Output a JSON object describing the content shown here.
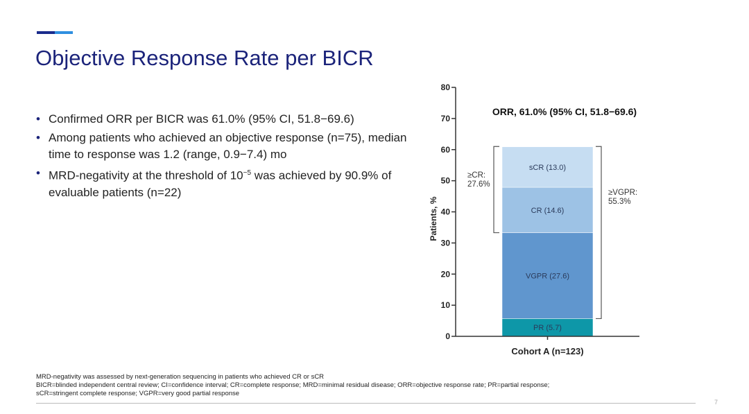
{
  "title": "Objective Response Rate per BICR",
  "bullets": [
    {
      "text": "Confirmed ORR per BICR was 61.0% (95% CI, 51.8−69.6)"
    },
    {
      "text": "Among patients who achieved an objective response (n=75), median time to response was 1.2 (range, 0.9−7.4) mo"
    },
    {
      "pre": "MRD-negativity at the threshold of 10",
      "sup": "−5",
      "post": " was achieved by 90.9% of evaluable patients (n=22)"
    }
  ],
  "footnotes": [
    "MRD-negativity was assessed by next-generation sequencing in patients who achieved CR or sCR",
    "BICR=blinded independent central review; CI=confidence interval; CR=complete response; MRD=minimal residual disease; ORR=objective response rate; PR=partial response;",
    "sCR=stringent complete response; VGPR=very good partial response"
  ],
  "page_number": "7",
  "chart_data": {
    "type": "bar",
    "stacked": true,
    "title": "ORR, 61.0% (95% CI, 51.8−69.6)",
    "ylabel": "Patients, %",
    "ylim": [
      0,
      80
    ],
    "yticks": [
      "0",
      "10",
      "20",
      "30",
      "40",
      "50",
      "60",
      "70",
      "80"
    ],
    "categories": [
      "Cohort  A (n=123)"
    ],
    "series": [
      {
        "name": "PR",
        "label": "PR (5.7)",
        "value": 5.7,
        "color": "#0e97a8"
      },
      {
        "name": "VGPR",
        "label": "VGPR (27.6)",
        "value": 27.6,
        "color": "#6096ce"
      },
      {
        "name": "CR",
        "label": "CR (14.6)",
        "value": 14.6,
        "color": "#9dc2e5"
      },
      {
        "name": "sCR",
        "label": "sCR (13.0)",
        "value": 13.0,
        "color": "#c6ddf2"
      }
    ],
    "annotations": [
      {
        "lines": [
          "≥CR:",
          "27.6%"
        ],
        "from": 33.3,
        "to": 61.0,
        "side": "left"
      },
      {
        "lines": [
          "≥VGPR:",
          "55.3%"
        ],
        "from": 5.7,
        "to": 61.0,
        "side": "right"
      }
    ]
  }
}
